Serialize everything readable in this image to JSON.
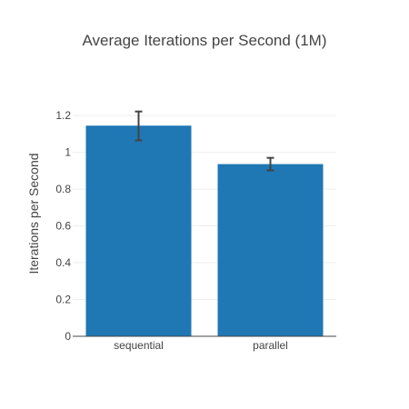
{
  "chart_data": {
    "type": "bar",
    "title": "Average Iterations per Second (1M)",
    "xlabel": "",
    "ylabel": "Iterations per Second",
    "categories": [
      "sequential",
      "parallel"
    ],
    "values": [
      1.145,
      0.936
    ],
    "error": [
      {
        "low": 1.065,
        "high": 1.222
      },
      {
        "low": 0.902,
        "high": 0.97
      }
    ],
    "ylim": [
      0,
      1.25
    ],
    "yticks": [
      0,
      0.2,
      0.4,
      0.6,
      0.8,
      1,
      1.2
    ],
    "ytick_labels": [
      "0",
      "0.2",
      "0.4",
      "0.6",
      "0.8",
      "1",
      "1.2"
    ],
    "grid": true,
    "legend": "none",
    "colors": {
      "bar": "#1f77b4",
      "errorbar": "#444444",
      "grid": "#eeeeee",
      "text": "#444444"
    }
  }
}
